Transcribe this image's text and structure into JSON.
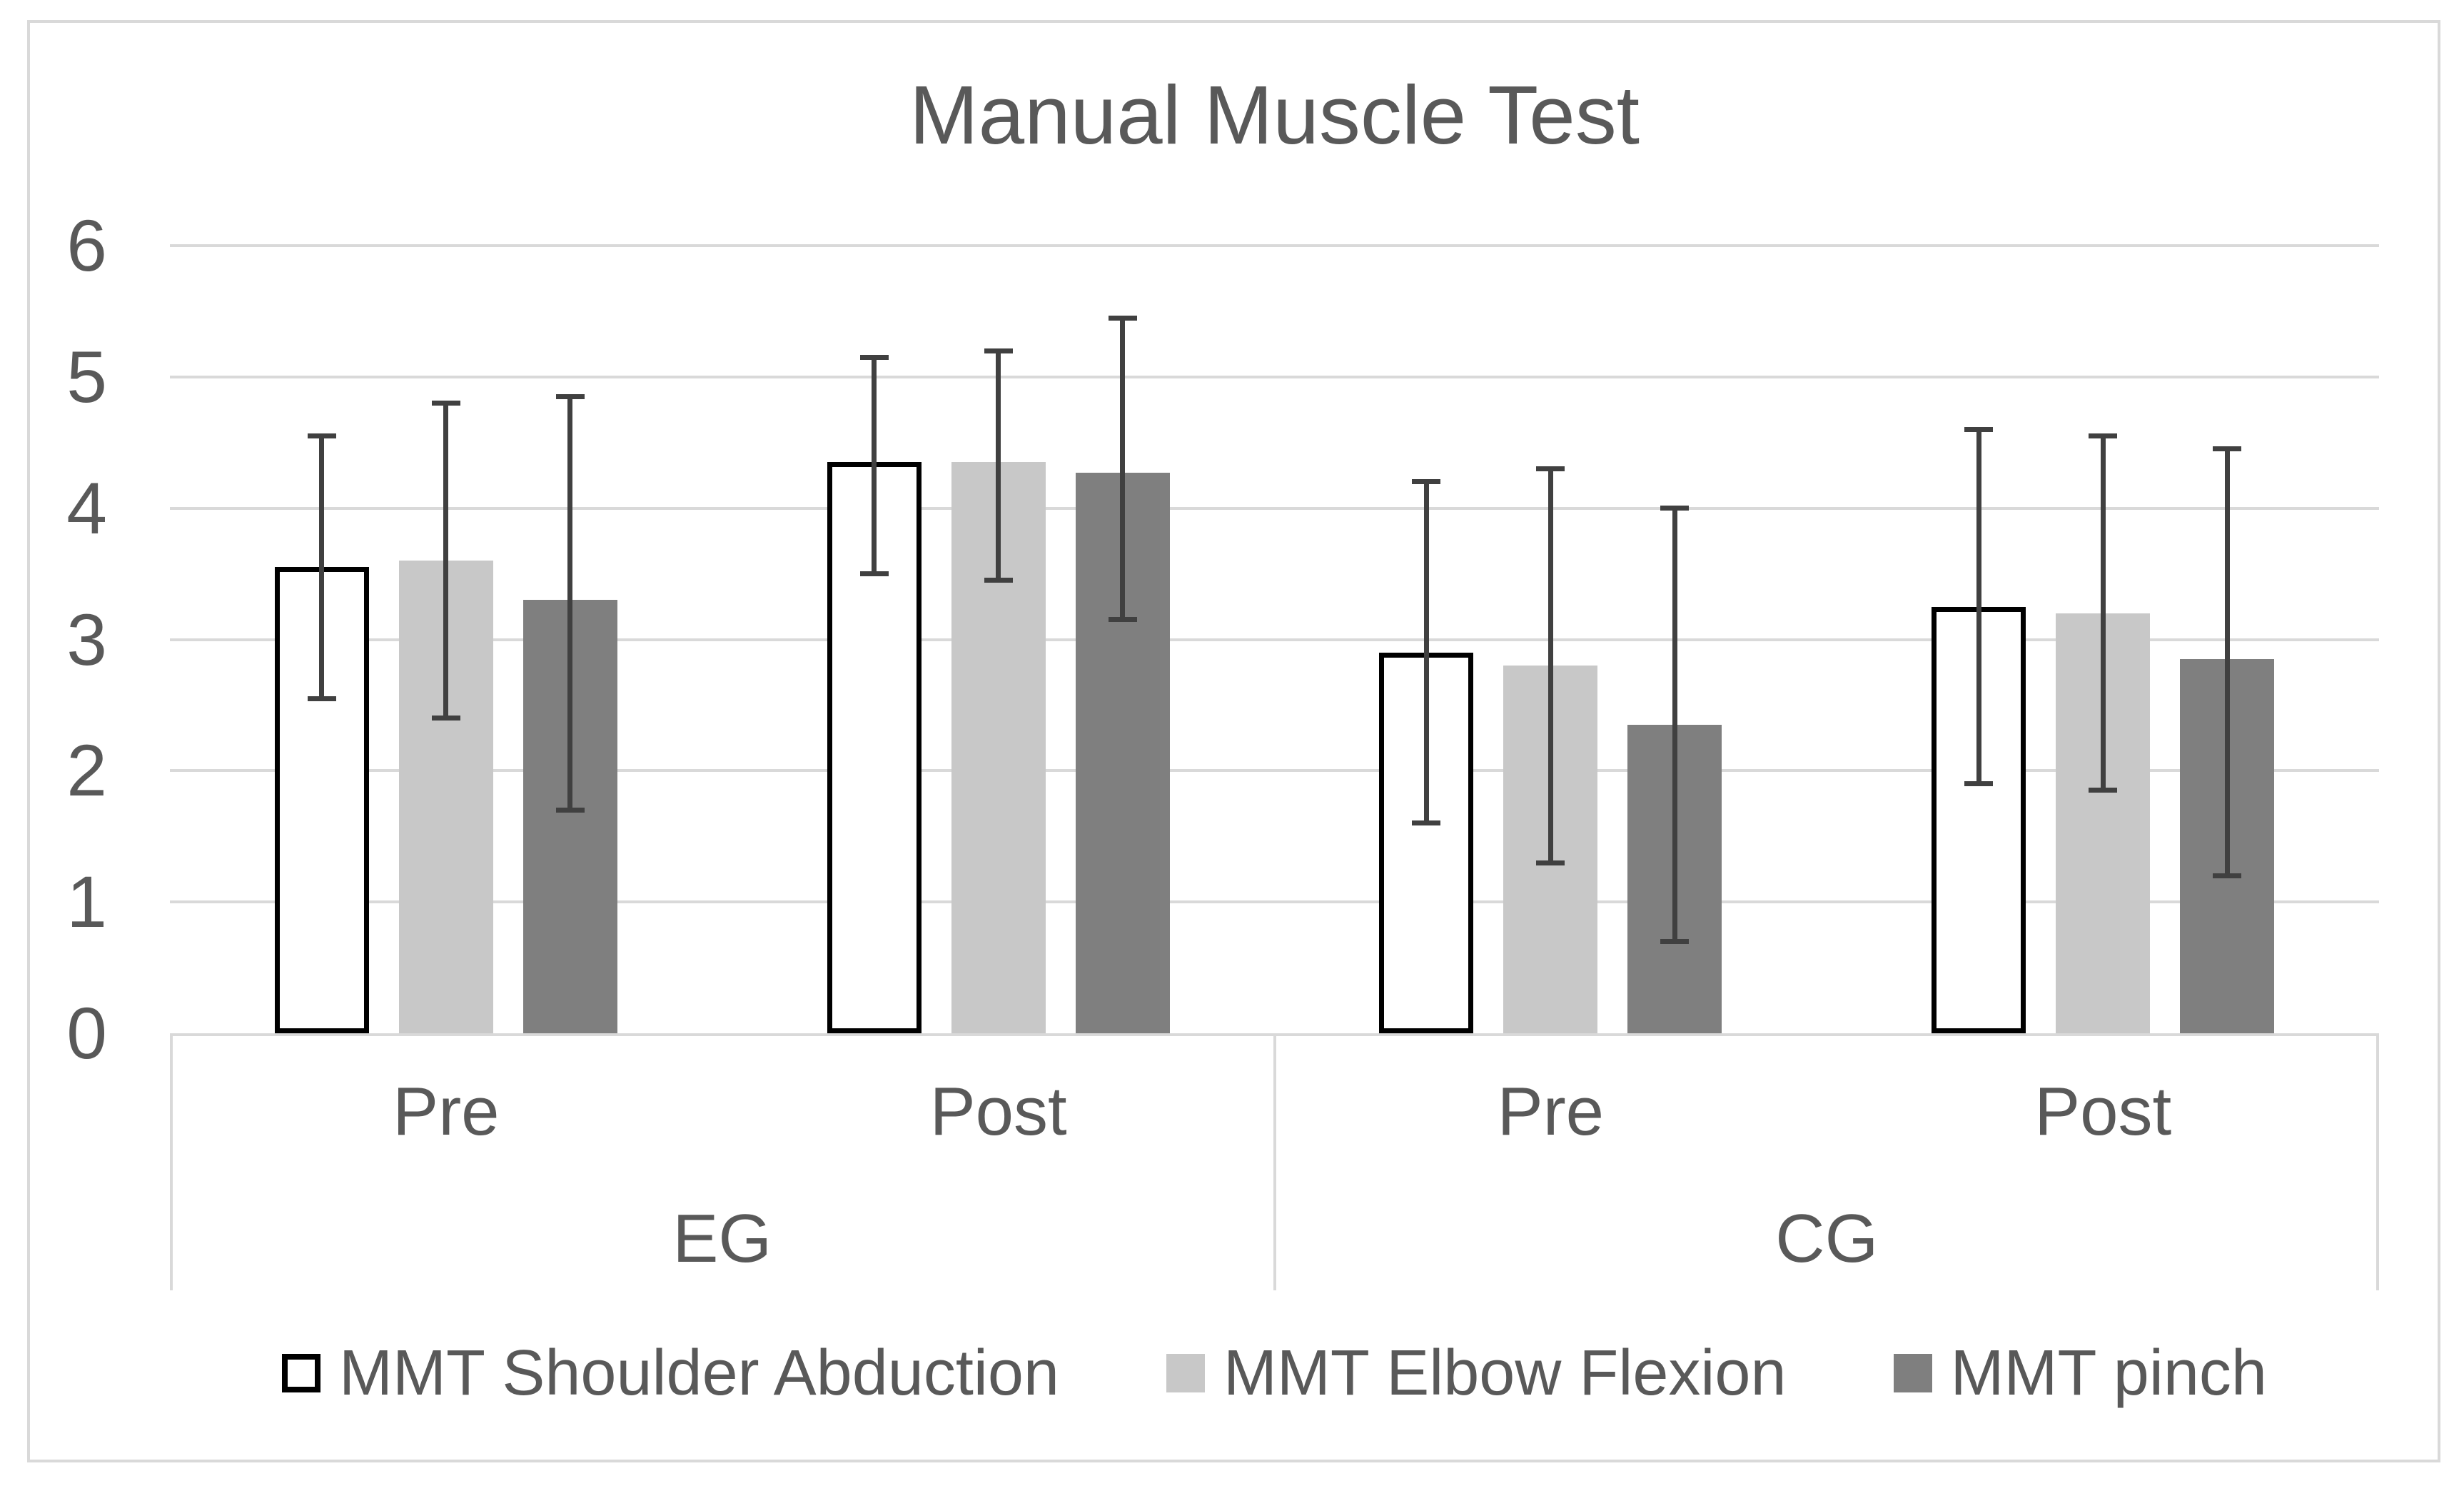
{
  "chart_data": {
    "type": "bar",
    "title": "Manual Muscle Test",
    "ylabel": "",
    "xlabel": "",
    "ylim": [
      0,
      6
    ],
    "yticks": [
      0,
      1,
      2,
      3,
      4,
      5,
      6
    ],
    "grid": "horizontal",
    "legend_position": "bottom",
    "group_axis": [
      {
        "group": "EG",
        "conditions": [
          "Pre",
          "Post"
        ]
      },
      {
        "group": "CG",
        "conditions": [
          "Pre",
          "Post"
        ]
      }
    ],
    "categories": [
      "EG Pre",
      "EG Post",
      "CG Pre",
      "CG Post"
    ],
    "series": [
      {
        "name": "MMT Shoulder Abduction",
        "fill": "#ffffff",
        "border": "#000000",
        "values": [
          3.55,
          4.35,
          2.9,
          3.25
        ],
        "error_low": [
          2.55,
          3.5,
          1.6,
          1.9
        ],
        "error_high": [
          4.55,
          5.15,
          4.2,
          4.6
        ]
      },
      {
        "name": "MMT Elbow Flexion",
        "fill": "#c8c8c8",
        "border": "none",
        "values": [
          3.6,
          4.35,
          2.8,
          3.2
        ],
        "error_low": [
          2.4,
          3.45,
          1.3,
          1.85
        ],
        "error_high": [
          4.8,
          5.2,
          4.3,
          4.55
        ]
      },
      {
        "name": "MMT pinch",
        "fill": "#7f7f7f",
        "border": "none",
        "values": [
          3.3,
          4.27,
          2.35,
          2.85
        ],
        "error_low": [
          1.7,
          3.15,
          0.7,
          1.2
        ],
        "error_high": [
          4.85,
          5.45,
          4.0,
          4.45
        ]
      }
    ],
    "colors": {
      "error_bar": "#404040",
      "text": "#595959",
      "gridline": "#d9d9d9",
      "axis_line": "#d9d9d9",
      "figure_border": "#d9d9d9"
    }
  }
}
